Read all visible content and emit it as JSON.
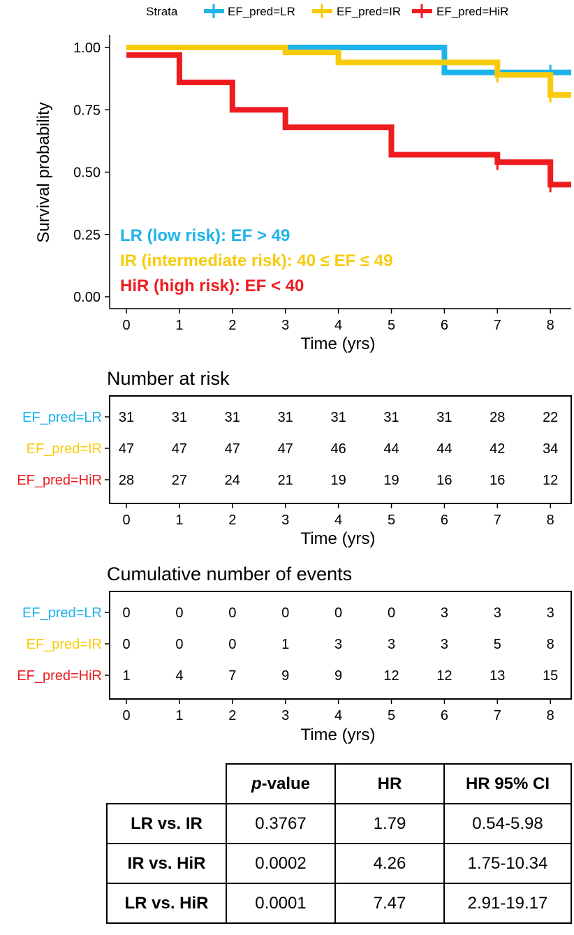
{
  "colors": {
    "LR": "#1EB3EA",
    "IR": "#F7CB0C",
    "HiR": "#EE1C1F"
  },
  "chart_data": [
    {
      "type": "line",
      "subtype": "kaplan-meier step",
      "title": "",
      "xlabel": "Time (yrs)",
      "ylabel": "Survival probability",
      "xlim": [
        -0.3,
        8.4
      ],
      "ylim": [
        0,
        1
      ],
      "x_ticks": [
        "0",
        "1",
        "2",
        "3",
        "4",
        "5",
        "6",
        "7",
        "8"
      ],
      "y_ticks": [
        "0.00",
        "0.25",
        "0.50",
        "0.75",
        "1.00"
      ],
      "legend": {
        "title": "Strata",
        "position": "top",
        "labels": [
          "EF_pred=LR",
          "EF_pred=IR",
          "EF_pred=HiR"
        ]
      },
      "annotations": [
        "LR (low risk): EF > 49",
        "IR (intermediate risk): 40 ≤ EF ≤ 49",
        "HiR (high risk): EF < 40"
      ],
      "series": [
        {
          "name": "EF_pred=LR",
          "key": "LR",
          "steps": [
            [
              0,
              1.0
            ],
            [
              6,
              0.9
            ],
            [
              8.4,
              0.9
            ]
          ],
          "censors": [
            [
              7,
              0.9
            ],
            [
              8,
              0.9
            ]
          ]
        },
        {
          "name": "EF_pred=IR",
          "key": "IR",
          "steps": [
            [
              0,
              1.0
            ],
            [
              3,
              0.98
            ],
            [
              4,
              0.94
            ],
            [
              7,
              0.89
            ],
            [
              8,
              0.81
            ],
            [
              8.4,
              0.81
            ]
          ],
          "censors": [
            [
              7,
              0.89
            ],
            [
              8,
              0.81
            ]
          ]
        },
        {
          "name": "EF_pred=HiR",
          "key": "HiR",
          "steps": [
            [
              0,
              0.97
            ],
            [
              1,
              0.86
            ],
            [
              2,
              0.75
            ],
            [
              3,
              0.68
            ],
            [
              5,
              0.57
            ],
            [
              7,
              0.54
            ],
            [
              8,
              0.45
            ],
            [
              8.4,
              0.45
            ]
          ],
          "censors": [
            [
              7,
              0.54
            ],
            [
              8,
              0.45
            ]
          ]
        }
      ]
    },
    {
      "type": "table",
      "title": "Number at risk",
      "xlabel": "Time (yrs)",
      "x_ticks": [
        "0",
        "1",
        "2",
        "3",
        "4",
        "5",
        "6",
        "7",
        "8"
      ],
      "rows": [
        {
          "label": "EF_pred=LR",
          "key": "LR",
          "values": [
            "31",
            "31",
            "31",
            "31",
            "31",
            "31",
            "31",
            "28",
            "22"
          ]
        },
        {
          "label": "EF_pred=IR",
          "key": "IR",
          "values": [
            "47",
            "47",
            "47",
            "47",
            "46",
            "44",
            "44",
            "42",
            "34"
          ]
        },
        {
          "label": "EF_pred=HiR",
          "key": "HiR",
          "values": [
            "28",
            "27",
            "24",
            "21",
            "19",
            "19",
            "16",
            "16",
            "12"
          ]
        }
      ]
    },
    {
      "type": "table",
      "title": "Cumulative number of events",
      "xlabel": "Time (yrs)",
      "x_ticks": [
        "0",
        "1",
        "2",
        "3",
        "4",
        "5",
        "6",
        "7",
        "8"
      ],
      "rows": [
        {
          "label": "EF_pred=LR",
          "key": "LR",
          "values": [
            "0",
            "0",
            "0",
            "0",
            "0",
            "0",
            "3",
            "3",
            "3"
          ]
        },
        {
          "label": "EF_pred=IR",
          "key": "IR",
          "values": [
            "0",
            "0",
            "0",
            "1",
            "3",
            "3",
            "3",
            "5",
            "8"
          ]
        },
        {
          "label": "EF_pred=HiR",
          "key": "HiR",
          "values": [
            "1",
            "4",
            "7",
            "9",
            "9",
            "12",
            "12",
            "13",
            "15"
          ]
        }
      ]
    }
  ],
  "stats_table": {
    "headers": [
      "p-value",
      "HR",
      "HR 95% CI"
    ],
    "header_p": "p",
    "header_p_rest": "-value",
    "rows": [
      {
        "label": "LR vs. IR",
        "p": "0.3767",
        "hr": "1.79",
        "ci": "0.54-5.98"
      },
      {
        "label": "IR vs. HiR",
        "p": "0.0002",
        "hr": "4.26",
        "ci": "1.75-10.34"
      },
      {
        "label": "LR vs. HiR",
        "p": "0.0001",
        "hr": "7.47",
        "ci": "2.91-19.17"
      }
    ]
  }
}
